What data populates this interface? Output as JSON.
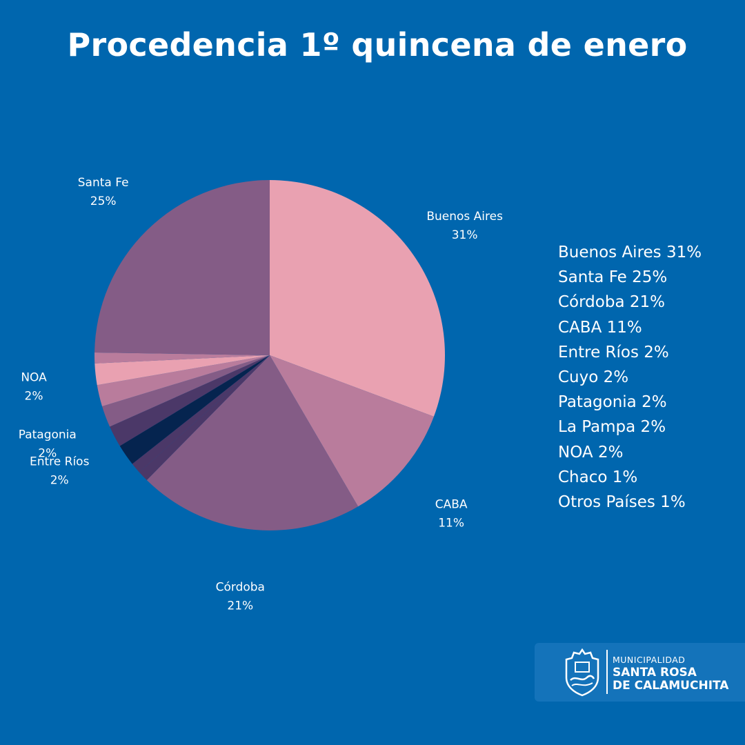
{
  "title": "Procedencia 1º quincena de enero",
  "chart_data": {
    "type": "pie",
    "title": "Procedencia 1º quincena de enero",
    "slices": [
      {
        "name": "Buenos Aires",
        "value": 31,
        "label": "31%",
        "color": "#E9A1B1",
        "labeled": true
      },
      {
        "name": "CABA",
        "value": 11,
        "label": "11%",
        "color": "#B97C9C",
        "labeled": true
      },
      {
        "name": "Córdoba",
        "value": 21,
        "label": "21%",
        "color": "#845C86",
        "labeled": true
      },
      {
        "name": "Otros Países",
        "value": 1,
        "label": "1%",
        "color": "#4B3868",
        "labeled": false
      },
      {
        "name": "Chaco",
        "value": 1,
        "label": "1%",
        "color": "#4B3868",
        "labeled": false
      },
      {
        "name": "Cuyo",
        "value": 2,
        "label": "2%",
        "color": "#05244F",
        "labeled": false
      },
      {
        "name": "Entre Ríos",
        "value": 2,
        "label": "2%",
        "color": "#4B3868",
        "labeled": true
      },
      {
        "name": "Patagonia",
        "value": 2,
        "label": "2%",
        "color": "#845C86",
        "labeled": true
      },
      {
        "name": "La Pampa",
        "value": 2,
        "label": "2%",
        "color": "#B97C9C",
        "labeled": false
      },
      {
        "name": "NOA",
        "value": 2,
        "label": "2%",
        "color": "#E9A1B1",
        "labeled": true
      },
      {
        "name": "Chaco ",
        "value": 1,
        "label": "1%",
        "color": "#B97C9C",
        "labeled": false
      },
      {
        "name": "Santa Fe",
        "value": 25,
        "label": "25%",
        "color": "#845C86",
        "labeled": true
      }
    ],
    "legend": [
      "Buenos Aires 31%",
      "Santa Fe 25%",
      "Córdoba 21%",
      "CABA 11%",
      "Entre Ríos 2%",
      "Cuyo 2%",
      "Patagonia 2%",
      "La Pampa 2%",
      "NOA 2%",
      "Chaco 1%",
      "Otros Países 1%"
    ],
    "legend_position": "right"
  },
  "logo": {
    "line1": "MUNICIPALIDAD",
    "line2": "SANTA ROSA",
    "line3": "DE CALAMUCHITA"
  }
}
